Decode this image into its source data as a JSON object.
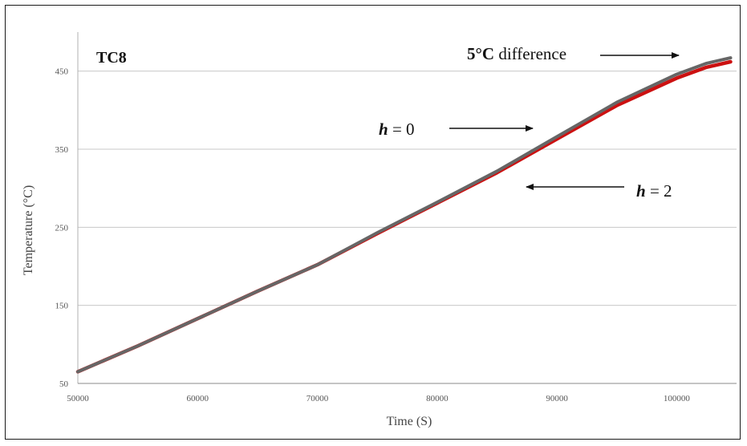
{
  "chart_data": {
    "type": "line",
    "panel_label": "TC8",
    "xlabel": "Time (S)",
    "ylabel": "Temperature (°C)",
    "xlim": [
      50000,
      105000
    ],
    "ylim": [
      50,
      500
    ],
    "x_ticks": [
      50000,
      60000,
      70000,
      80000,
      90000,
      100000
    ],
    "y_ticks": [
      50,
      150,
      250,
      350,
      450
    ],
    "grid": "horizontal",
    "series": [
      {
        "name": "h = 0",
        "color": "#666666",
        "x": [
          50000,
          55000,
          60000,
          65000,
          70000,
          75000,
          80000,
          85000,
          90000,
          95000,
          100000,
          102500,
          104500
        ],
        "y": [
          65,
          98,
          133,
          168,
          202,
          243,
          282,
          322,
          366,
          410,
          446,
          460,
          467
        ]
      },
      {
        "name": "h = 2",
        "color": "#cc1111",
        "x": [
          50000,
          55000,
          60000,
          65000,
          70000,
          75000,
          80000,
          85000,
          90000,
          95000,
          100000,
          102500,
          104500
        ],
        "y": [
          65,
          98,
          133,
          168,
          202,
          242,
          281,
          320,
          363,
          406,
          441,
          455,
          462
        ]
      }
    ],
    "annotations": [
      {
        "bold_part": "5°C",
        "rest": " difference",
        "arrow": "right"
      },
      {
        "bold_part": "h",
        "rest": " = 0",
        "arrow": "right"
      },
      {
        "bold_part": "h",
        "rest": " = 2",
        "arrow": "left"
      }
    ]
  }
}
